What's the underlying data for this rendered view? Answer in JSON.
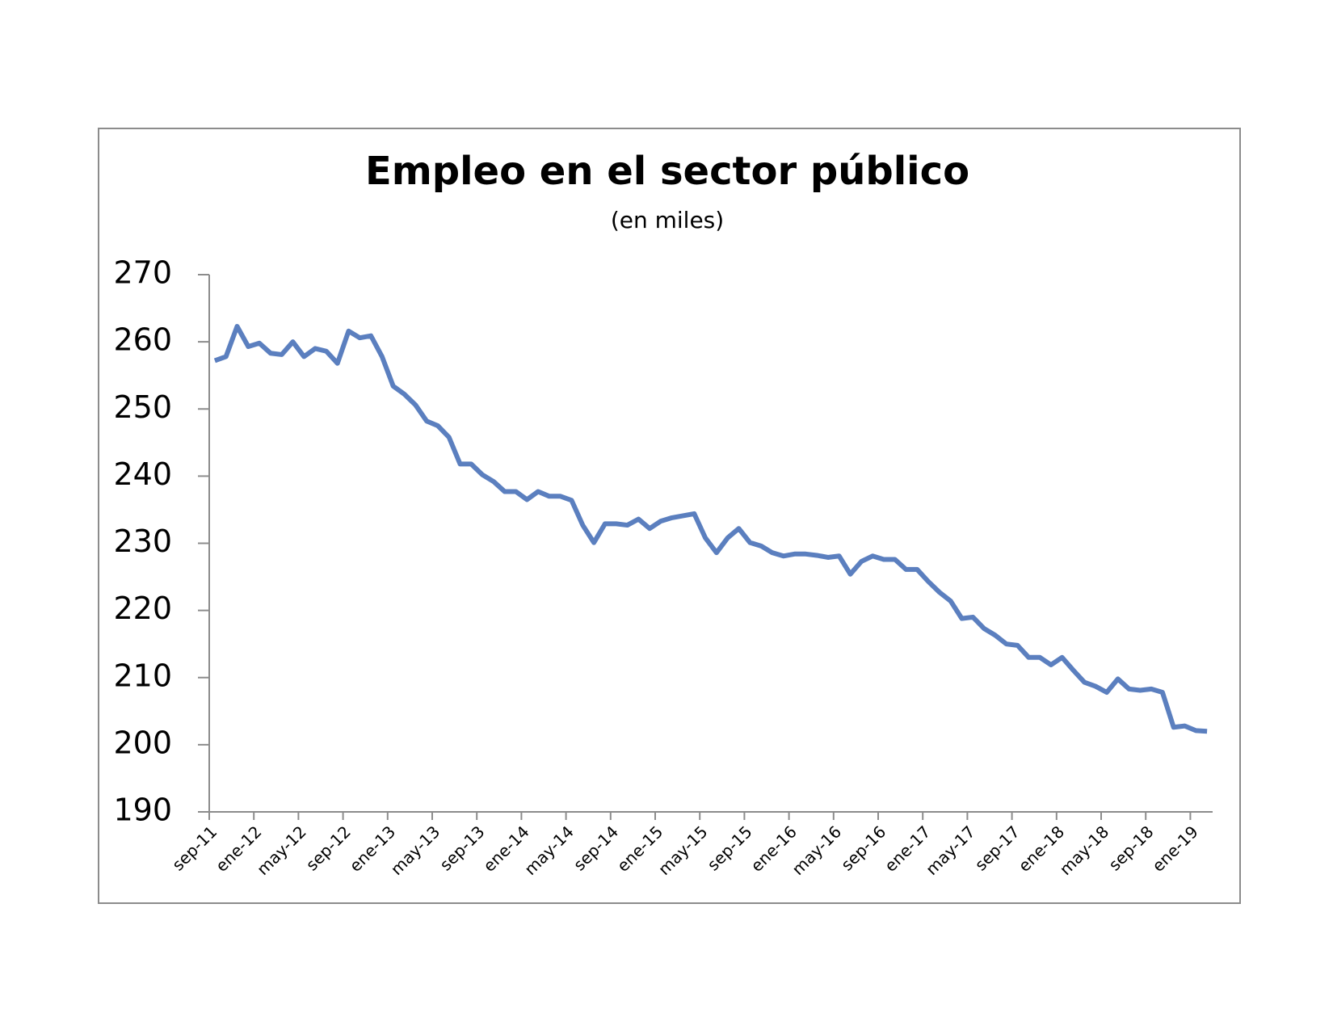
{
  "chart_data": {
    "type": "line",
    "title": "Empleo en el sector público",
    "subtitle": "(en miles)",
    "categories": [
      "sep-11",
      null,
      null,
      null,
      "ene-12",
      null,
      null,
      null,
      "may-12",
      null,
      null,
      null,
      "sep-12",
      null,
      null,
      null,
      "ene-13",
      null,
      null,
      null,
      "may-13",
      null,
      null,
      null,
      "sep-13",
      null,
      null,
      null,
      "ene-14",
      null,
      null,
      null,
      "may-14",
      null,
      null,
      null,
      "sep-14",
      null,
      null,
      null,
      "ene-15",
      null,
      null,
      null,
      "may-15",
      null,
      null,
      null,
      "sep-15",
      null,
      null,
      null,
      "ene-16",
      null,
      null,
      null,
      "may-16",
      null,
      null,
      null,
      "sep-16",
      null,
      null,
      null,
      "ene-17",
      null,
      null,
      null,
      "may-17",
      null,
      null,
      null,
      "sep-17",
      null,
      null,
      null,
      "ene-18",
      null,
      null,
      null,
      "may-18",
      null,
      null,
      null,
      "sep-18",
      null,
      null,
      null,
      "ene-19",
      null
    ],
    "series": [
      {
        "name": "Empleo",
        "color": "#5b7fbf",
        "values": [
          257.2,
          257.8,
          262.3,
          259.3,
          259.8,
          258.3,
          258.1,
          260.0,
          257.8,
          259.0,
          258.6,
          256.8,
          261.6,
          260.6,
          260.9,
          257.8,
          253.4,
          252.2,
          250.6,
          248.2,
          247.5,
          245.8,
          241.8,
          241.8,
          240.2,
          239.2,
          237.7,
          237.7,
          236.5,
          237.7,
          237.0,
          237.0,
          236.4,
          232.7,
          230.1,
          232.9,
          232.9,
          232.7,
          233.6,
          232.2,
          233.3,
          233.8,
          234.1,
          234.4,
          230.8,
          228.6,
          230.8,
          232.2,
          230.1,
          229.6,
          228.6,
          228.1,
          228.4,
          228.4,
          228.2,
          227.9,
          228.1,
          225.4,
          227.3,
          228.1,
          227.6,
          227.6,
          226.1,
          226.1,
          224.3,
          222.7,
          221.4,
          218.8,
          219.0,
          217.3,
          216.3,
          215.0,
          214.8,
          213.0,
          213.0,
          211.9,
          213.0,
          211.1,
          209.3,
          208.7,
          207.8,
          209.8,
          208.3,
          208.1,
          208.3,
          207.8,
          202.6,
          202.8,
          202.1,
          202.0
        ]
      }
    ],
    "ylim": [
      190,
      270
    ],
    "yticks": [
      190,
      200,
      210,
      220,
      230,
      240,
      250,
      260,
      270
    ],
    "grid": false
  }
}
